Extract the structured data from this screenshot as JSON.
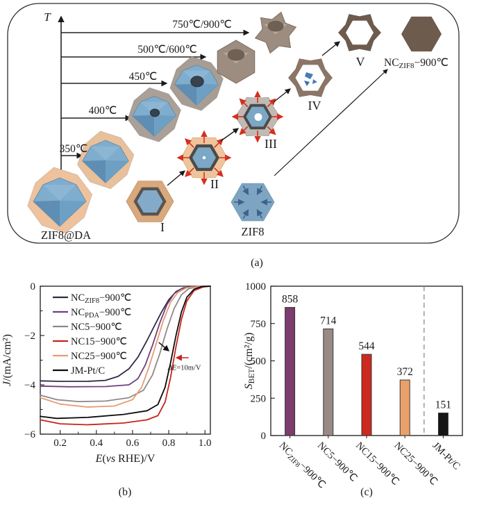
{
  "panel_a": {
    "caption": "(a)",
    "axis_label": "T",
    "temp_labels": [
      "350℃",
      "400℃",
      "450℃",
      "500℃/600℃",
      "750℃/900℃"
    ],
    "stage_labels": [
      "I",
      "II",
      "III",
      "IV",
      "V"
    ],
    "zif8da_label": "ZIF8@DA",
    "zif8_label": "ZIF8",
    "product_label": {
      "pre": "NC",
      "sub": "ZIF8",
      "post": "−900℃"
    }
  },
  "panel_b": {
    "caption": "(b)"
  },
  "panel_c": {
    "caption": "(c)"
  },
  "chart_data": [
    {
      "id": "orr-polarization-curves",
      "type": "line",
      "title": "",
      "xlabel": "E(vs RHE)/V",
      "xlabel_parts": [
        {
          "text": "E",
          "italic": true
        },
        {
          "text": "("
        },
        {
          "text": "vs",
          "italic": true
        },
        {
          "text": " RHE)/V"
        }
      ],
      "ylabel": "J/(mA/cm²)",
      "ylabel_parts": [
        {
          "text": "J",
          "italic": true
        },
        {
          "text": "/(mA/cm²)"
        }
      ],
      "xlim": [
        0.09,
        1.03
      ],
      "ylim": [
        -6,
        0
      ],
      "xticks": [
        0.2,
        0.4,
        0.6,
        0.8,
        1.0
      ],
      "xticks_minor": [
        0.3,
        0.5,
        0.7,
        0.9
      ],
      "yticks": [
        0,
        -2,
        -4,
        -6
      ],
      "yticks_minor": [
        -1,
        -3,
        -5
      ],
      "grid": false,
      "legend_position": "upper-left",
      "annotation": {
        "text": "ΔE=10m/V",
        "text_parts": [
          {
            "text": "ΔE",
            "italic": true
          },
          {
            "text": "=10m/V"
          }
        ],
        "x": 0.795,
        "y": -3.4,
        "arrows": [
          {
            "color": "#111111",
            "x1": 0.745,
            "y1": -2.28,
            "x2": 0.8,
            "y2": -2.62
          },
          {
            "color": "#c7221b",
            "x1": 0.91,
            "y1": -2.9,
            "x2": 0.843,
            "y2": -2.9
          }
        ]
      },
      "series": [
        {
          "name": "NC_ZIF8−900℃",
          "color": "#322947",
          "name_parts": [
            {
              "text": "NC"
            },
            {
              "text": "ZIF8",
              "sub": true
            },
            {
              "text": "−900℃"
            }
          ],
          "points": [
            [
              0.09,
              -3.84
            ],
            [
              0.2,
              -3.86
            ],
            [
              0.35,
              -3.86
            ],
            [
              0.45,
              -3.82
            ],
            [
              0.52,
              -3.66
            ],
            [
              0.58,
              -3.35
            ],
            [
              0.63,
              -2.88
            ],
            [
              0.68,
              -2.2
            ],
            [
              0.72,
              -1.62
            ],
            [
              0.76,
              -1.05
            ],
            [
              0.8,
              -0.55
            ],
            [
              0.84,
              -0.22
            ],
            [
              0.88,
              -0.07
            ],
            [
              0.93,
              -0.02
            ],
            [
              1.03,
              0
            ]
          ]
        },
        {
          "name": "NC_PDA−900℃",
          "color": "#6e4079",
          "name_parts": [
            {
              "text": "NC"
            },
            {
              "text": "PDA",
              "sub": true
            },
            {
              "text": "−900℃"
            }
          ],
          "points": [
            [
              0.09,
              -4.05
            ],
            [
              0.25,
              -4.08
            ],
            [
              0.45,
              -4.07
            ],
            [
              0.58,
              -4.0
            ],
            [
              0.63,
              -3.75
            ],
            [
              0.67,
              -3.2
            ],
            [
              0.71,
              -2.4
            ],
            [
              0.75,
              -1.5
            ],
            [
              0.79,
              -0.75
            ],
            [
              0.83,
              -0.3
            ],
            [
              0.87,
              -0.1
            ],
            [
              0.92,
              -0.02
            ],
            [
              1.03,
              0
            ]
          ]
        },
        {
          "name": "NC5−900℃",
          "color": "#8f888a",
          "name_parts": [
            {
              "text": "NC5−900℃"
            }
          ],
          "points": [
            [
              0.09,
              -4.42
            ],
            [
              0.18,
              -4.6
            ],
            [
              0.3,
              -4.68
            ],
            [
              0.45,
              -4.66
            ],
            [
              0.58,
              -4.52
            ],
            [
              0.66,
              -4.22
            ],
            [
              0.71,
              -3.6
            ],
            [
              0.75,
              -2.75
            ],
            [
              0.79,
              -1.75
            ],
            [
              0.83,
              -0.9
            ],
            [
              0.87,
              -0.35
            ],
            [
              0.91,
              -0.1
            ],
            [
              0.96,
              -0.02
            ],
            [
              1.03,
              0
            ]
          ]
        },
        {
          "name": "NC15−900℃",
          "color": "#c7221b",
          "name_parts": [
            {
              "text": "NC15−900℃"
            }
          ],
          "points": [
            [
              0.09,
              -5.42
            ],
            [
              0.2,
              -5.58
            ],
            [
              0.35,
              -5.62
            ],
            [
              0.55,
              -5.55
            ],
            [
              0.68,
              -5.42
            ],
            [
              0.74,
              -5.25
            ],
            [
              0.78,
              -4.7
            ],
            [
              0.81,
              -3.7
            ],
            [
              0.84,
              -2.45
            ],
            [
              0.87,
              -1.35
            ],
            [
              0.9,
              -0.6
            ],
            [
              0.94,
              -0.18
            ],
            [
              0.99,
              -0.03
            ],
            [
              1.03,
              0
            ]
          ]
        },
        {
          "name": "NC25−900℃",
          "color": "#e79b72",
          "name_parts": [
            {
              "text": "NC25−900℃"
            }
          ],
          "points": [
            [
              0.09,
              -4.52
            ],
            [
              0.2,
              -4.78
            ],
            [
              0.35,
              -4.9
            ],
            [
              0.5,
              -4.86
            ],
            [
              0.6,
              -4.6
            ],
            [
              0.65,
              -4.1
            ],
            [
              0.69,
              -3.3
            ],
            [
              0.73,
              -2.35
            ],
            [
              0.77,
              -1.4
            ],
            [
              0.81,
              -0.65
            ],
            [
              0.85,
              -0.25
            ],
            [
              0.9,
              -0.06
            ],
            [
              1.03,
              0
            ]
          ]
        },
        {
          "name": "JM-Pt/C",
          "color": "#0a0a0a",
          "name_parts": [
            {
              "text": "JM-Pt/C"
            }
          ],
          "points": [
            [
              0.09,
              -5.28
            ],
            [
              0.18,
              -5.36
            ],
            [
              0.35,
              -5.32
            ],
            [
              0.55,
              -5.2
            ],
            [
              0.68,
              -5.05
            ],
            [
              0.74,
              -4.8
            ],
            [
              0.78,
              -4.1
            ],
            [
              0.81,
              -3.1
            ],
            [
              0.84,
              -2.0
            ],
            [
              0.87,
              -1.05
            ],
            [
              0.9,
              -0.45
            ],
            [
              0.94,
              -0.12
            ],
            [
              0.98,
              -0.02
            ],
            [
              1.03,
              0
            ]
          ]
        }
      ]
    },
    {
      "id": "bet-surface-area",
      "type": "bar",
      "title": "",
      "xlabel": "",
      "ylabel": "S_BET/(cm²/g)",
      "ylabel_parts": [
        {
          "text": "S",
          "italic": true
        },
        {
          "text": "BET",
          "sub": true
        },
        {
          "text": "/(cm²/g)"
        }
      ],
      "ylim": [
        0,
        1000
      ],
      "yticks": [
        0,
        250,
        500,
        750,
        1000
      ],
      "categories": [
        "NC_ZIF8−900℃",
        "NC5−900℃",
        "NC15−900℃",
        "NC25−900℃",
        "JM-Pt/C"
      ],
      "category_parts": [
        [
          {
            "text": "NC"
          },
          {
            "text": "ZIF8",
            "sub": true
          },
          {
            "text": "−900℃"
          }
        ],
        [
          {
            "text": "NC5−900℃"
          }
        ],
        [
          {
            "text": "NC15−900℃"
          }
        ],
        [
          {
            "text": "NC25−900℃"
          }
        ],
        [
          {
            "text": "JM-Pt/C"
          }
        ]
      ],
      "values": [
        858,
        714,
        544,
        372,
        151
      ],
      "colors": [
        "#7d3c6d",
        "#998a85",
        "#cd2a1f",
        "#eaa06b",
        "#161616"
      ],
      "separator_after": 4,
      "separator_style": "dashed"
    }
  ]
}
